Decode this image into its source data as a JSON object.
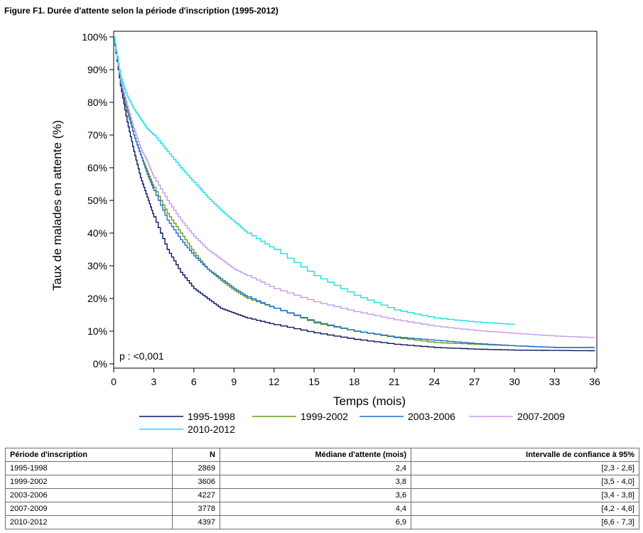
{
  "figure_title": "Figure F1. Durée d'attente selon la période d'inscription (1995-2012)",
  "chart_data": {
    "type": "line",
    "title": "Figure F1. Durée d'attente selon la période d'inscription (1995-2012)",
    "xlabel": "Temps (mois)",
    "ylabel": "Taux de malades en attente (%)",
    "xlim": [
      0,
      36
    ],
    "ylim": [
      0,
      100
    ],
    "x_ticks": [
      "0",
      "3",
      "6",
      "9",
      "12",
      "15",
      "18",
      "21",
      "24",
      "27",
      "30",
      "33",
      "36"
    ],
    "y_ticks": [
      "0%",
      "10%",
      "20%",
      "30%",
      "40%",
      "50%",
      "60%",
      "70%",
      "80%",
      "90%",
      "100%"
    ],
    "annotation": "p : <0,001",
    "grid": false,
    "legend_position": "bottom",
    "series": [
      {
        "name": "1995-1998",
        "color": "#0a1560",
        "x": [
          0,
          0.5,
          1,
          1.5,
          2,
          2.5,
          3,
          4,
          5,
          6,
          7,
          8,
          9,
          10,
          12,
          15,
          18,
          21,
          24,
          27,
          30,
          33,
          36
        ],
        "y": [
          100,
          85,
          74,
          65,
          57,
          51,
          45,
          35,
          28,
          23,
          20,
          17,
          15.5,
          14,
          12,
          9.5,
          7.5,
          6,
          5,
          4.5,
          4.2,
          4.1,
          4
        ]
      },
      {
        "name": "1999-2002",
        "color": "#6a9a1a",
        "x": [
          0,
          0.5,
          1,
          1.5,
          2,
          2.5,
          3,
          4,
          5,
          6,
          7,
          8,
          9,
          10,
          12,
          15,
          18,
          21,
          24,
          27,
          30,
          33,
          36
        ],
        "y": [
          100,
          86,
          77,
          70,
          64,
          59,
          54,
          46,
          40,
          34,
          29,
          25.5,
          22.5,
          20,
          17,
          12.5,
          10,
          8,
          6.5,
          6,
          5.5,
          5,
          5
        ]
      },
      {
        "name": "2003-2006",
        "color": "#1c6fd0",
        "x": [
          0,
          0.5,
          1,
          1.5,
          2,
          2.5,
          3,
          4,
          5,
          6,
          7,
          8,
          9,
          10,
          12,
          15,
          18,
          21,
          24,
          27,
          30,
          33,
          36
        ],
        "y": [
          100,
          86,
          78,
          70,
          64,
          58,
          53,
          44,
          38,
          33,
          29,
          26,
          23,
          20.5,
          17,
          12.8,
          10,
          8.2,
          7.2,
          6.2,
          5.5,
          5,
          5
        ]
      },
      {
        "name": "2007-2009",
        "color": "#c79be8",
        "x": [
          0,
          0.5,
          1,
          1.5,
          2,
          2.5,
          3,
          4,
          5,
          6,
          7,
          8,
          9,
          10,
          12,
          15,
          18,
          21,
          24,
          27,
          30,
          33,
          36
        ],
        "y": [
          100,
          87,
          79,
          72,
          66,
          62,
          57,
          50,
          44,
          39,
          35,
          32,
          29,
          27,
          23,
          19,
          16,
          13.5,
          11.5,
          10.2,
          9.3,
          8.5,
          8
        ]
      },
      {
        "name": "2010-2012",
        "color": "#18e0e6",
        "x": [
          0,
          0.5,
          1,
          1.5,
          2,
          2.5,
          3,
          4,
          5,
          6,
          7,
          8,
          9,
          10,
          12,
          15,
          18,
          21,
          24,
          27,
          30
        ],
        "y": [
          100,
          88,
          82,
          78,
          75,
          72,
          70,
          65,
          60,
          55.5,
          51,
          47,
          43.5,
          40,
          35,
          27,
          21,
          16.5,
          14,
          12.8,
          12
        ]
      }
    ]
  },
  "table": {
    "headers": [
      "Période d'inscription",
      "N",
      "Médiane d'attente (mois)",
      "Intervalle de confiance à 95%"
    ],
    "rows": [
      [
        "1995-1998",
        "2869",
        "2,4",
        "[2,3 - 2,6]"
      ],
      [
        "1999-2002",
        "3606",
        "3,8",
        "[3,5 - 4,0]"
      ],
      [
        "2003-2006",
        "4227",
        "3,6",
        "[3,4 - 3,8]"
      ],
      [
        "2007-2009",
        "3778",
        "4,4",
        "[4,2 - 4,6]"
      ],
      [
        "2010-2012",
        "4397",
        "6,9",
        "[6,6 - 7,3]"
      ]
    ]
  }
}
